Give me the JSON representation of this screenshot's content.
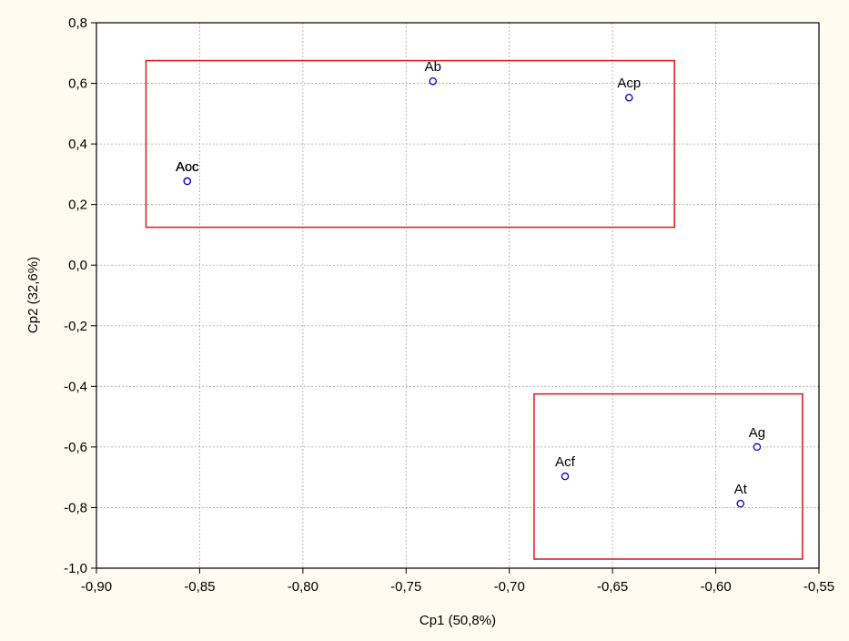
{
  "chart_data": {
    "type": "scatter",
    "title": "",
    "xlabel": "Cp1 (50,8%)",
    "ylabel": "Cp2 (32,6%)",
    "xlim": [
      -0.9,
      -0.55
    ],
    "ylim": [
      -1.0,
      0.8
    ],
    "grid": true,
    "x_ticks": [
      -0.9,
      -0.85,
      -0.8,
      -0.75,
      -0.7,
      -0.65,
      -0.6,
      -0.55
    ],
    "x_tick_labels": [
      "-0,90",
      "-0,85",
      "-0,80",
      "-0,75",
      "-0,70",
      "-0,65",
      "-0,60",
      "-0,55"
    ],
    "y_ticks": [
      0.8,
      0.6,
      0.4,
      0.2,
      0.0,
      -0.2,
      -0.4,
      -0.6,
      -0.8,
      -1.0
    ],
    "y_tick_labels": [
      "0,8",
      "0,6",
      "0,4",
      "0,2",
      "0,0",
      "-0,2",
      "-0,4",
      "-0,6",
      "-0,8",
      "-1,0"
    ],
    "points": [
      {
        "label": "Ab",
        "x": -0.737,
        "y": 0.607
      },
      {
        "label": "Acp",
        "x": -0.642,
        "y": 0.553
      },
      {
        "label": "Acc",
        "x": -0.856,
        "y": 0.277
      },
      {
        "label": "Aoc",
        "x": -0.856,
        "y": 0.277
      },
      {
        "label": "Ag",
        "x": -0.58,
        "y": -0.6
      },
      {
        "label": "Acf",
        "x": -0.673,
        "y": -0.697
      },
      {
        "label": "At",
        "x": -0.588,
        "y": -0.787
      }
    ],
    "group_boxes": [
      {
        "x0": -0.876,
        "x1": -0.62,
        "y0": 0.125,
        "y1": 0.675
      },
      {
        "x0": -0.688,
        "x1": -0.558,
        "y0": -0.97,
        "y1": -0.425
      }
    ],
    "colors": {
      "point": "#0000cc",
      "box": "#e8141e",
      "grid": "#a8a8a8",
      "background": "#fffbf0",
      "plot_background": "#ffffff"
    }
  }
}
